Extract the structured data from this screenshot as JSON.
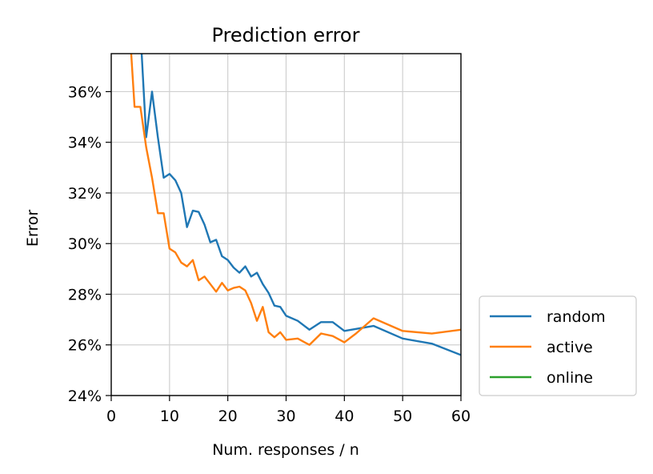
{
  "chart_data": {
    "type": "line",
    "title": "Prediction error",
    "xlabel": "Num. responses / n",
    "ylabel": "Error",
    "xlim": [
      0,
      60
    ],
    "ylim": [
      24,
      37.5
    ],
    "x_ticks": [
      0,
      10,
      20,
      30,
      40,
      50,
      60
    ],
    "y_ticks": [
      24,
      26,
      28,
      30,
      32,
      34,
      36
    ],
    "y_tick_format": "percent",
    "grid": true,
    "legend_position": "outside-right-bottom",
    "series": [
      {
        "name": "random",
        "color": "#1f77b4",
        "points": [
          [
            5.2,
            37.6
          ],
          [
            6,
            34.2
          ],
          [
            7,
            36.0
          ],
          [
            8,
            34.2
          ],
          [
            9,
            32.6
          ],
          [
            10,
            32.75
          ],
          [
            11,
            32.5
          ],
          [
            12,
            32.0
          ],
          [
            13,
            30.65
          ],
          [
            14,
            31.3
          ],
          [
            15,
            31.25
          ],
          [
            16,
            30.75
          ],
          [
            17,
            30.05
          ],
          [
            18,
            30.15
          ],
          [
            19,
            29.5
          ],
          [
            20,
            29.35
          ],
          [
            21,
            29.05
          ],
          [
            22,
            28.85
          ],
          [
            23,
            29.1
          ],
          [
            24,
            28.7
          ],
          [
            25,
            28.85
          ],
          [
            26,
            28.4
          ],
          [
            27,
            28.05
          ],
          [
            28,
            27.55
          ],
          [
            29,
            27.5
          ],
          [
            30,
            27.15
          ],
          [
            32,
            26.95
          ],
          [
            34,
            26.6
          ],
          [
            36,
            26.9
          ],
          [
            38,
            26.9
          ],
          [
            40,
            26.55
          ],
          [
            45,
            26.75
          ],
          [
            50,
            26.25
          ],
          [
            55,
            26.05
          ],
          [
            60,
            25.6
          ]
        ]
      },
      {
        "name": "active",
        "color": "#ff7f0e",
        "points": [
          [
            3.4,
            37.6
          ],
          [
            4,
            35.4
          ],
          [
            5,
            35.4
          ],
          [
            6,
            33.8
          ],
          [
            7,
            32.6
          ],
          [
            8,
            31.2
          ],
          [
            9,
            31.2
          ],
          [
            10,
            29.8
          ],
          [
            11,
            29.65
          ],
          [
            12,
            29.25
          ],
          [
            13,
            29.1
          ],
          [
            14,
            29.35
          ],
          [
            15,
            28.55
          ],
          [
            16,
            28.7
          ],
          [
            17,
            28.4
          ],
          [
            18,
            28.1
          ],
          [
            19,
            28.45
          ],
          [
            20,
            28.15
          ],
          [
            21,
            28.25
          ],
          [
            22,
            28.3
          ],
          [
            23,
            28.15
          ],
          [
            24,
            27.65
          ],
          [
            25,
            26.95
          ],
          [
            26,
            27.5
          ],
          [
            27,
            26.5
          ],
          [
            28,
            26.3
          ],
          [
            29,
            26.5
          ],
          [
            30,
            26.2
          ],
          [
            32,
            26.25
          ],
          [
            34,
            26.0
          ],
          [
            36,
            26.45
          ],
          [
            38,
            26.35
          ],
          [
            40,
            26.1
          ],
          [
            42,
            26.45
          ],
          [
            45,
            27.05
          ],
          [
            50,
            26.55
          ],
          [
            55,
            26.45
          ],
          [
            60,
            26.6
          ]
        ]
      },
      {
        "name": "online",
        "color": "#2ca02c",
        "points": []
      }
    ]
  }
}
